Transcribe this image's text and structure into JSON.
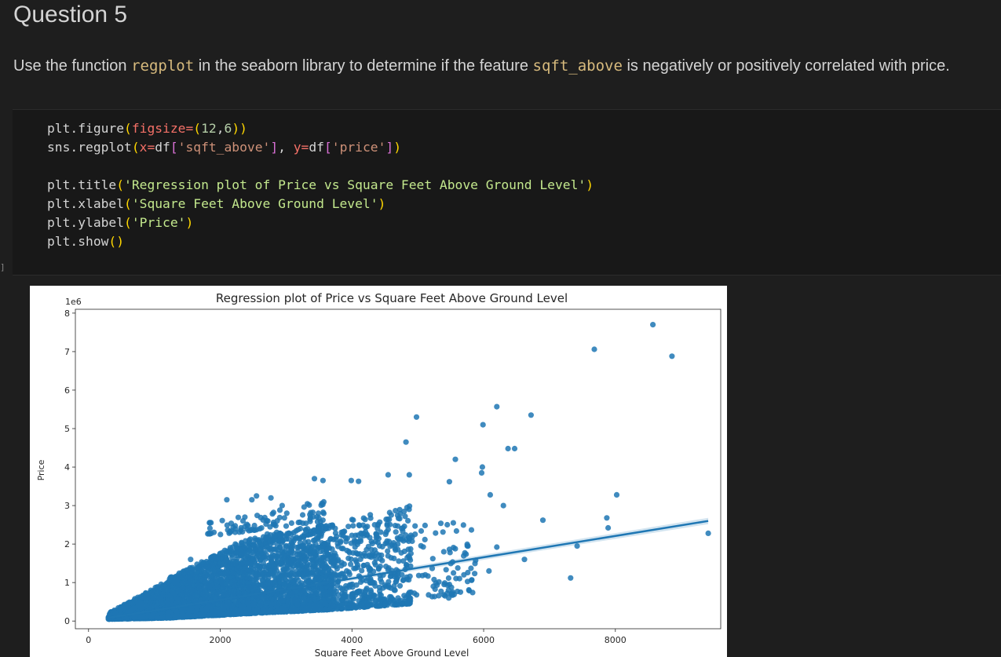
{
  "section": {
    "title": "Question 5"
  },
  "instruction": {
    "pre": "Use the function ",
    "fn": "regplot",
    "mid": " in the seaborn library to determine if the feature ",
    "feature": "sqft_above",
    "post": " is negatively or positively correlated with price."
  },
  "code_cell": {
    "exec_label": "]",
    "lines": [
      "plt.figure(figsize=(12,6))",
      "sns.regplot(x=df['sqft_above'], y=df['price'])",
      "",
      "plt.title('Regression plot of Price vs Square Feet Above Ground Level')",
      "plt.xlabel('Square Feet Above Ground Level')",
      "plt.ylabel('Price')",
      "plt.show()"
    ]
  },
  "chart_data": {
    "type": "scatter",
    "title": "Regression plot of Price vs Square Feet Above Ground Level",
    "xlabel": "Square Feet Above Ground Level",
    "ylabel": "Price",
    "y_scale_label": "1e6",
    "xlim": [
      -200,
      9600
    ],
    "ylim": [
      -0.2,
      8.1
    ],
    "xticks": [
      0,
      2000,
      4000,
      6000,
      8000
    ],
    "yticks": [
      0,
      1,
      2,
      3,
      4,
      5,
      6,
      7,
      8
    ],
    "point_color": "#1f77b4",
    "regression_line": {
      "x": [
        290,
        9410
      ],
      "y": [
        0.08,
        2.6
      ]
    },
    "outliers": [
      [
        8570,
        7.7
      ],
      [
        7680,
        7.06
      ],
      [
        8860,
        6.88
      ],
      [
        6200,
        5.57
      ],
      [
        6720,
        5.35
      ],
      [
        4980,
        5.3
      ],
      [
        5990,
        5.1
      ],
      [
        6370,
        4.48
      ],
      [
        6470,
        4.48
      ],
      [
        4820,
        4.65
      ],
      [
        5570,
        4.2
      ],
      [
        5980,
        4.0
      ],
      [
        5970,
        3.85
      ],
      [
        4550,
        3.8
      ],
      [
        4870,
        3.8
      ],
      [
        3430,
        3.7
      ],
      [
        3560,
        3.65
      ],
      [
        3990,
        3.65
      ],
      [
        4100,
        3.63
      ],
      [
        5480,
        3.62
      ],
      [
        8020,
        3.28
      ],
      [
        6100,
        3.28
      ],
      [
        6300,
        3.0
      ],
      [
        7870,
        2.68
      ],
      [
        7890,
        2.42
      ],
      [
        6900,
        2.62
      ],
      [
        9410,
        2.28
      ],
      [
        7420,
        1.95
      ],
      [
        7320,
        1.12
      ],
      [
        6620,
        1.6
      ],
      [
        6200,
        1.92
      ],
      [
        6080,
        1.3
      ],
      [
        5700,
        1.2
      ],
      [
        5480,
        0.95
      ],
      [
        5400,
        0.95
      ],
      [
        5470,
        0.6
      ],
      [
        4700,
        0.6
      ],
      [
        4570,
        0.5
      ],
      [
        2100,
        3.15
      ],
      [
        2480,
        3.15
      ],
      [
        2550,
        3.25
      ],
      [
        2770,
        3.2
      ],
      [
        2940,
        3.0
      ],
      [
        2230,
        2.0
      ],
      [
        1550,
        1.6
      ]
    ],
    "clusters": [
      {
        "x0": 300,
        "x1": 1200,
        "ylo0": 0.05,
        "ylo1": 0.08,
        "yhi0": 0.2,
        "yhi1": 1.05,
        "n": 1000
      },
      {
        "x0": 1200,
        "x1": 2500,
        "ylo0": 0.08,
        "ylo1": 0.2,
        "yhi0": 1.1,
        "yhi1": 2.2,
        "n": 1800
      },
      {
        "x0": 2500,
        "x1": 3700,
        "ylo0": 0.2,
        "ylo1": 0.3,
        "yhi0": 2.2,
        "yhi1": 2.55,
        "n": 1300
      },
      {
        "x0": 3700,
        "x1": 4900,
        "ylo0": 0.3,
        "ylo1": 0.45,
        "yhi0": 2.55,
        "yhi1": 3.0,
        "n": 500
      },
      {
        "x0": 4900,
        "x1": 5900,
        "ylo0": 0.6,
        "ylo1": 0.7,
        "yhi0": 2.5,
        "yhi1": 2.7,
        "n": 80
      },
      {
        "x0": 1800,
        "x1": 3600,
        "ylo0": 2.2,
        "ylo1": 2.6,
        "yhi0": 2.6,
        "yhi1": 3.2,
        "n": 90
      }
    ]
  }
}
